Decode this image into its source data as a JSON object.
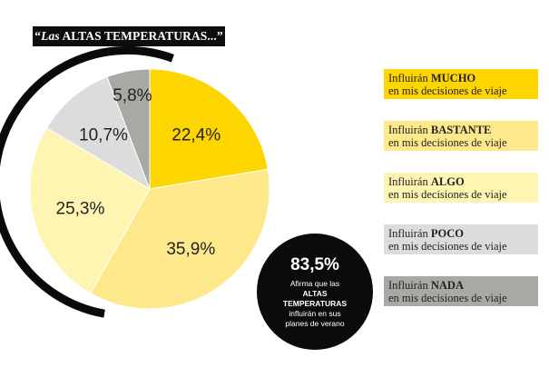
{
  "title": {
    "prefix": "“",
    "italic_part": "Las",
    "main": " ALTAS TEMPERATURAS...",
    "suffix": "”"
  },
  "legend": [
    {
      "bold": "MUCHO",
      "prefix": "Influirán ",
      "line2": "en mis decisiones de viaje",
      "color": "#fdd500"
    },
    {
      "bold": "BASTANTE",
      "prefix": "Influirán ",
      "line2": "en mis decisiones de viaje",
      "color": "#fde98c"
    },
    {
      "bold": "ALGO",
      "prefix": "Influirán ",
      "line2": "en mis decisiones de viaje",
      "color": "#fff5b3"
    },
    {
      "bold": "POCO",
      "prefix": "Influirán ",
      "line2": "en mis decisiones de viaje",
      "color": "#dcdcdc"
    },
    {
      "bold": "NADA",
      "prefix": "Influirán ",
      "line2": "en mis decisiones de viaje",
      "color": "#a8a8a4"
    }
  ],
  "callout": {
    "value": "83,5%",
    "line1": "Afirma que las",
    "bold1": "ALTAS",
    "bold2": "TEMPERATURAS",
    "line2": "influirán en sus",
    "line3": "planes de verano"
  },
  "chart_data": {
    "type": "pie",
    "categories": [
      "MUCHO",
      "BASTANTE",
      "ALGO",
      "POCO",
      "NADA"
    ],
    "values": [
      22.4,
      35.9,
      25.3,
      10.7,
      5.8
    ],
    "labels": [
      "22,4%",
      "35,9%",
      "25,3%",
      "10,7%",
      "5,8%"
    ],
    "colors": [
      "#fdd500",
      "#fde98c",
      "#fff5b3",
      "#dcdcdc",
      "#a8a8a4"
    ],
    "legend_placement": "right"
  }
}
